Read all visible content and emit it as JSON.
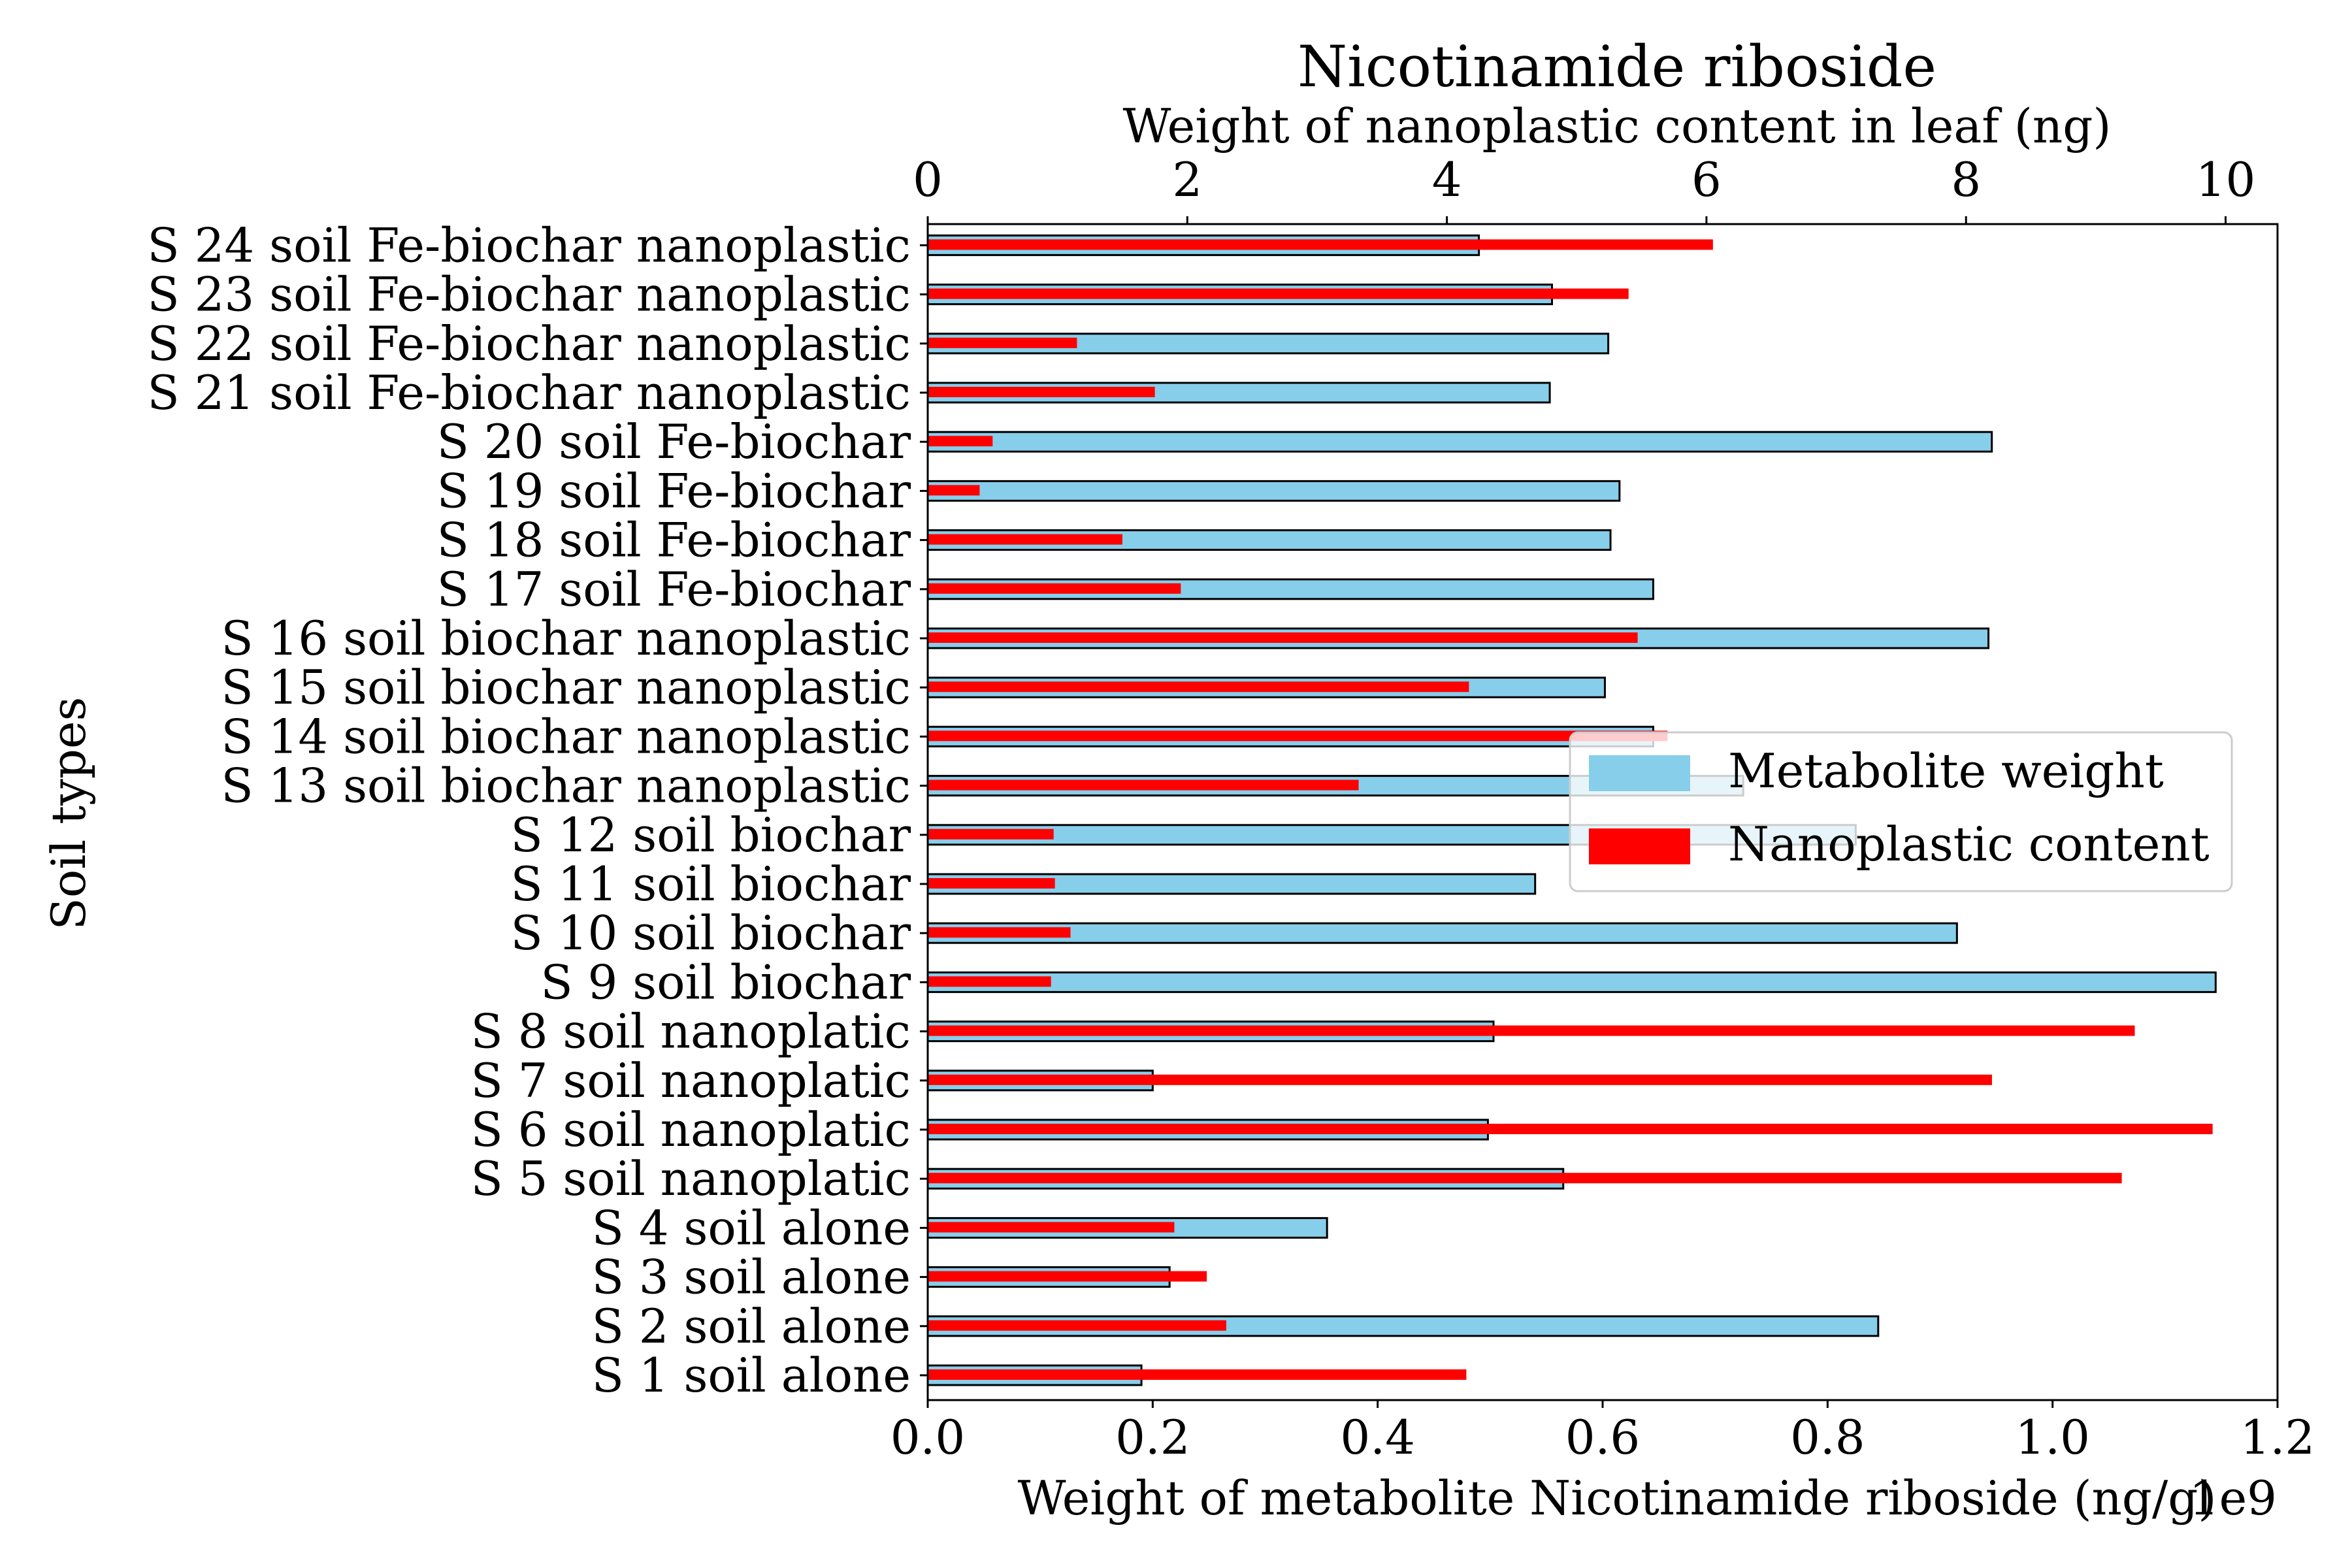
{
  "chart_data": {
    "type": "bar",
    "orientation": "horizontal",
    "title": "Nicotinamide riboside",
    "title_color": "#a52a2a",
    "ylabel": "Soil types",
    "xlabel_bottom": "Weight of metabolite Nicotinamide riboside (ng/g)",
    "xlabel_top": "Weight of nanoplastic content in leaf (ng)",
    "bottom_axis_multiplier": "1e9",
    "bottom_ticks": [
      "0.0",
      "0.2",
      "0.4",
      "0.6",
      "0.8",
      "1.0",
      "1.2"
    ],
    "top_ticks": [
      "0",
      "2",
      "4",
      "6",
      "8",
      "10"
    ],
    "xlim_bottom": [
      0,
      1.2
    ],
    "xlim_top": [
      0,
      10.4
    ],
    "categories": [
      "S 1 soil alone",
      "S 2 soil alone",
      "S 3 soil alone",
      "S 4 soil alone",
      "S 5 soil nanoplatic",
      "S 6 soil nanoplatic",
      "S 7 soil nanoplatic",
      "S 8 soil nanoplatic",
      "S 9 soil biochar",
      "S 10 soil biochar",
      "S 11 soil biochar",
      "S 12 soil biochar",
      "S 13 soil biochar nanoplastic",
      "S 14 soil biochar nanoplastic",
      "S 15 soil biochar nanoplastic",
      "S 16 soil biochar nanoplastic",
      "S 17 soil Fe-biochar",
      "S 18 soil Fe-biochar",
      "S 19 soil Fe-biochar",
      "S 20 soil Fe-biochar",
      "S 21 soil Fe-biochar nanoplastic",
      "S 22 soil Fe-biochar nanoplastic",
      "S 23 soil Fe-biochar nanoplastic",
      "S 24 soil Fe-biochar nanoplastic"
    ],
    "series": [
      {
        "name": "Metabolite weight",
        "axis": "bottom",
        "units": "1e9 ng/g",
        "color": "#87ceeb",
        "values": [
          0.19,
          0.845,
          0.215,
          0.355,
          0.565,
          0.498,
          0.2,
          0.503,
          1.145,
          0.915,
          0.54,
          0.825,
          0.725,
          0.645,
          0.602,
          0.943,
          0.645,
          0.607,
          0.615,
          0.946,
          0.553,
          0.605,
          0.555,
          0.49
        ]
      },
      {
        "name": "Nanoplastic content",
        "axis": "top",
        "units": "ng",
        "color": "#ff0000",
        "values": [
          4.15,
          2.3,
          2.15,
          1.9,
          9.2,
          9.9,
          8.2,
          9.3,
          0.95,
          1.1,
          0.98,
          0.97,
          3.32,
          5.7,
          4.17,
          5.47,
          1.95,
          1.5,
          0.4,
          0.5,
          1.75,
          1.15,
          5.4,
          6.05
        ]
      }
    ],
    "legend": {
      "position": "right",
      "entries": [
        "Metabolite weight",
        "Nanoplastic content"
      ]
    },
    "grid": false
  }
}
